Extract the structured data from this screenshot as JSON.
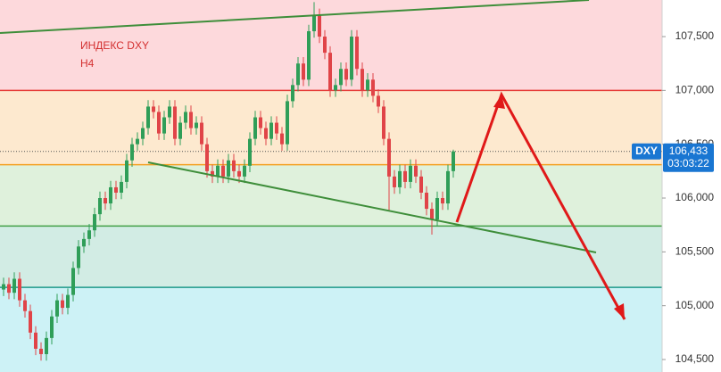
{
  "chart_data": {
    "type": "candlestick",
    "title": "ИНДЕКС DXY",
    "subtitle": "H4",
    "up_color": "#2f9e58",
    "down_color": "#e04448",
    "ylim": [
      104.384,
      107.84
    ],
    "yticks": [
      {
        "value": 104.5,
        "label": "104,500"
      },
      {
        "value": 105,
        "label": "105,000"
      },
      {
        "value": 105.5,
        "label": "105,500"
      },
      {
        "value": 106,
        "label": "106,000"
      },
      {
        "value": 106.5,
        "label": "106,500"
      },
      {
        "value": 107,
        "label": "107,000"
      },
      {
        "value": 107.5,
        "label": "107,500"
      }
    ],
    "levels": [
      {
        "value": 107.0,
        "color": "#e53935"
      },
      {
        "value": 106.31,
        "color": "#f4a021"
      },
      {
        "value": 105.74,
        "color": "#43a047"
      },
      {
        "value": 105.17,
        "color": "#1e9a8a"
      }
    ],
    "zone_colors": [
      "#fdd9dc",
      "#fde9cf",
      "#dff1dc",
      "#d2ece4",
      "#cdf2f6"
    ],
    "last_price": {
      "symbol": "DXY",
      "price": {
        "value": 106.433,
        "label": "106,433"
      },
      "countdown": "03:03:22",
      "color": "#1976d2"
    },
    "open": [
      105.15,
      105.2,
      105.12,
      105.25,
      105.05,
      104.95,
      104.75,
      104.6,
      104.55,
      104.7,
      104.9,
      105.05,
      104.98,
      105.1,
      105.35,
      105.55,
      105.62,
      105.7,
      105.85,
      106.0,
      105.95,
      106.1,
      106.05,
      106.15,
      106.35,
      106.5,
      106.55,
      106.65,
      106.85,
      106.8,
      106.6,
      106.75,
      106.85,
      106.55,
      106.7,
      106.8,
      106.65,
      106.7,
      106.5,
      106.25,
      106.2,
      106.3,
      106.2,
      106.35,
      106.25,
      106.2,
      106.3,
      106.55,
      106.75,
      106.65,
      106.55,
      106.7,
      106.6,
      106.5,
      106.9,
      107.05,
      107.25,
      107.1,
      107.55,
      107.7,
      107.5,
      107.35,
      107.0,
      107.05,
      107.2,
      107.1,
      107.5,
      107.2,
      107.0,
      107.1,
      106.95,
      106.85,
      106.55,
      106.2,
      106.1,
      106.25,
      106.15,
      106.3,
      106.2,
      106.05,
      105.9,
      105.8,
      106.0,
      105.95,
      106.25
    ],
    "high": [
      105.26,
      105.26,
      105.31,
      105.31,
      105.11,
      105.01,
      104.81,
      104.66,
      104.76,
      104.96,
      105.11,
      105.11,
      105.16,
      105.41,
      105.61,
      105.68,
      105.76,
      105.91,
      106.06,
      106.06,
      106.16,
      106.16,
      106.21,
      106.41,
      106.56,
      106.61,
      106.71,
      106.91,
      106.91,
      106.86,
      106.81,
      106.91,
      106.91,
      106.76,
      106.86,
      106.86,
      106.76,
      106.76,
      106.56,
      106.31,
      106.36,
      106.36,
      106.41,
      106.41,
      106.31,
      106.36,
      106.61,
      106.81,
      106.81,
      106.71,
      106.76,
      106.76,
      106.66,
      106.96,
      107.11,
      107.31,
      107.31,
      107.61,
      107.82,
      107.76,
      107.56,
      107.41,
      107.11,
      107.26,
      107.26,
      107.56,
      107.56,
      107.26,
      107.16,
      107.16,
      107.01,
      106.91,
      106.61,
      106.26,
      106.31,
      106.31,
      106.36,
      106.36,
      106.26,
      106.11,
      105.96,
      106.06,
      106.06,
      106.31,
      106.45
    ],
    "low": [
      105.09,
      105.06,
      105.06,
      104.99,
      104.89,
      104.69,
      104.54,
      104.49,
      104.49,
      104.64,
      104.84,
      104.92,
      104.92,
      105.04,
      105.29,
      105.49,
      105.56,
      105.64,
      105.79,
      105.89,
      105.89,
      105.99,
      105.99,
      106.09,
      106.29,
      106.44,
      106.49,
      106.59,
      106.74,
      106.54,
      106.54,
      106.69,
      106.49,
      106.49,
      106.64,
      106.59,
      106.59,
      106.44,
      106.19,
      106.14,
      106.14,
      106.14,
      106.14,
      106.19,
      106.14,
      106.14,
      106.24,
      106.49,
      106.59,
      106.49,
      106.49,
      106.54,
      106.44,
      106.44,
      106.84,
      106.99,
      107.04,
      107.04,
      107.49,
      107.44,
      107.29,
      106.94,
      106.94,
      106.99,
      107.04,
      107.04,
      107.14,
      106.94,
      106.94,
      106.89,
      106.79,
      106.49,
      105.88,
      106.04,
      106.04,
      106.09,
      106.09,
      106.14,
      105.99,
      105.84,
      105.66,
      105.74,
      105.89,
      105.89,
      106.19
    ],
    "close": [
      105.2,
      105.12,
      105.25,
      105.05,
      104.95,
      104.75,
      104.6,
      104.55,
      104.7,
      104.9,
      105.05,
      104.98,
      105.1,
      105.35,
      105.55,
      105.62,
      105.7,
      105.85,
      106.0,
      105.95,
      106.1,
      106.05,
      106.15,
      106.35,
      106.5,
      106.55,
      106.65,
      106.85,
      106.8,
      106.6,
      106.75,
      106.85,
      106.55,
      106.7,
      106.8,
      106.65,
      106.7,
      106.5,
      106.25,
      106.2,
      106.3,
      106.2,
      106.35,
      106.25,
      106.2,
      106.3,
      106.55,
      106.75,
      106.65,
      106.55,
      106.7,
      106.6,
      106.5,
      106.9,
      107.05,
      107.25,
      107.1,
      107.55,
      107.7,
      107.5,
      107.35,
      107.0,
      107.05,
      107.2,
      107.1,
      107.5,
      107.2,
      107.0,
      107.1,
      106.95,
      106.85,
      106.55,
      106.2,
      106.1,
      106.25,
      106.15,
      106.3,
      106.2,
      106.05,
      105.9,
      105.8,
      106.0,
      105.95,
      106.25,
      106.433
    ]
  }
}
